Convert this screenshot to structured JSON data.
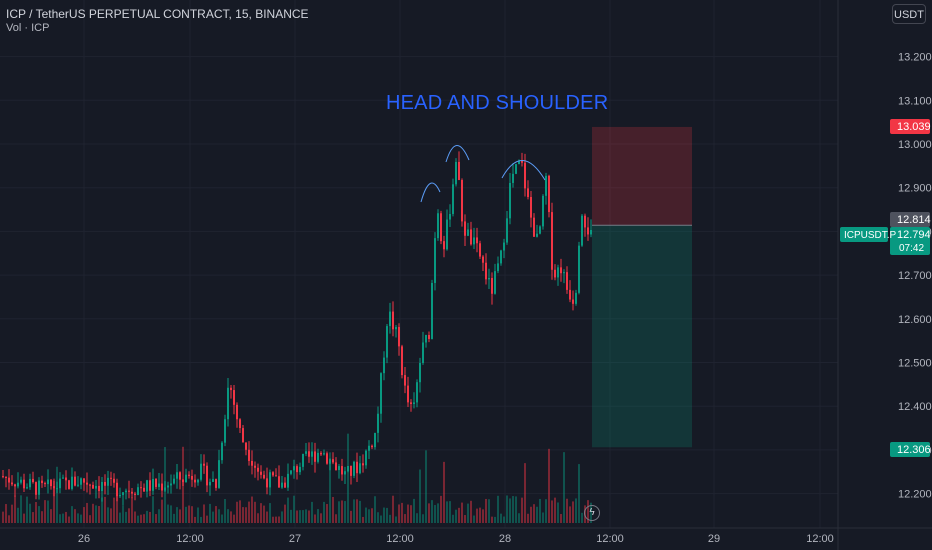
{
  "header": {
    "title": "ICP / TetherUS PERPETUAL CONTRACT, 15, BINANCE",
    "volume_label": "Vol · ICP",
    "currency_button": "USDT"
  },
  "annotation": {
    "text": "HEAD AND SHOULDER",
    "color": "#2962ff"
  },
  "price_scale": {
    "ticks": [
      "13.200",
      "13.100",
      "13.000",
      "12.900",
      "12.800",
      "12.700",
      "12.600",
      "12.500",
      "12.400",
      "12.300",
      "12.200"
    ],
    "markers": [
      {
        "name": "stop-loss",
        "value": "13.039",
        "color": "#f23645"
      },
      {
        "name": "entry",
        "value": "12.814",
        "color": "#4e525e"
      },
      {
        "name": "last-price",
        "value": "12.794",
        "color": "#089981"
      },
      {
        "name": "take-profit",
        "value": "12.306",
        "color": "#089981"
      }
    ],
    "symbol_tag": "ICPUSDT.P",
    "countdown": "07:42"
  },
  "time_axis": {
    "labels": [
      "26",
      "12:00",
      "27",
      "12:00",
      "28",
      "12:00",
      "29",
      "12:00"
    ]
  },
  "chart_data": {
    "type": "candlestick",
    "symbol": "ICPUSDT.P",
    "interval": "15",
    "exchange": "BINANCE",
    "ylim": [
      12.15,
      13.25
    ],
    "position": {
      "direction": "short",
      "stop": 13.039,
      "entry": 12.814,
      "target": 12.306
    },
    "pattern": "HEAD AND SHOULDER",
    "colors": {
      "up": "#089981",
      "down": "#f23645",
      "background": "#161a25"
    }
  }
}
